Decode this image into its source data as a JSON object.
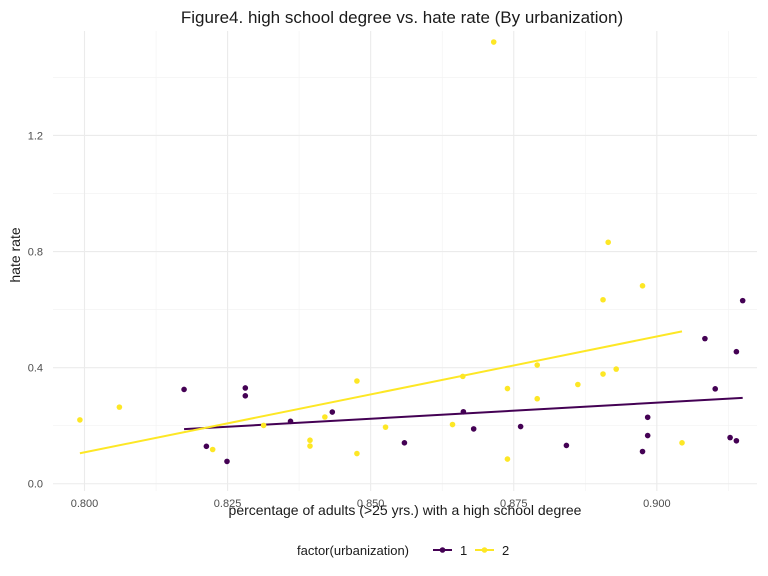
{
  "chart_data": {
    "type": "scatter",
    "title": "Figure4. high school degree vs. hate rate (By urbanization)",
    "xlabel": "percentage of adults (>25 yrs.) with a high school degree",
    "ylabel": "hate rate",
    "xlim": [
      0.7945,
      0.9175
    ],
    "ylim": [
      -0.025,
      1.56
    ],
    "x_ticks": [
      0.8,
      0.825,
      0.85,
      0.875,
      0.9
    ],
    "x_tick_labels": [
      "0.800",
      "0.825",
      "0.850",
      "0.875",
      "0.900"
    ],
    "y_ticks": [
      0.0,
      0.4,
      0.8,
      1.2
    ],
    "y_tick_labels": [
      "0.0",
      "0.4",
      "0.8",
      "1.2"
    ],
    "grid": true,
    "legend": {
      "title": "factor(urbanization)",
      "position": "bottom",
      "entries": [
        "1",
        "2"
      ]
    },
    "series": [
      {
        "name": "1",
        "color": "#440154",
        "points": [
          [
            0.8174,
            0.325
          ],
          [
            0.8213,
            0.129
          ],
          [
            0.8249,
            0.077
          ],
          [
            0.8281,
            0.33
          ],
          [
            0.8281,
            0.303
          ],
          [
            0.836,
            0.215
          ],
          [
            0.8433,
            0.247
          ],
          [
            0.8559,
            0.141
          ],
          [
            0.8662,
            0.248
          ],
          [
            0.868,
            0.189
          ],
          [
            0.8762,
            0.197
          ],
          [
            0.8842,
            0.132
          ],
          [
            0.8975,
            0.111
          ],
          [
            0.8984,
            0.229
          ],
          [
            0.8984,
            0.166
          ],
          [
            0.9084,
            0.5
          ],
          [
            0.9102,
            0.327
          ],
          [
            0.9128,
            0.159
          ],
          [
            0.9139,
            0.148
          ],
          [
            0.9139,
            0.455
          ],
          [
            0.915,
            0.631
          ]
        ],
        "trend": [
          [
            0.8174,
            0.188
          ],
          [
            0.915,
            0.296
          ]
        ]
      },
      {
        "name": "2",
        "color": "#fde725",
        "points": [
          [
            0.7992,
            0.22
          ],
          [
            0.8061,
            0.264
          ],
          [
            0.8224,
            0.118
          ],
          [
            0.8313,
            0.201
          ],
          [
            0.8394,
            0.15
          ],
          [
            0.8394,
            0.13
          ],
          [
            0.842,
            0.23
          ],
          [
            0.8476,
            0.354
          ],
          [
            0.8476,
            0.104
          ],
          [
            0.8526,
            0.195
          ],
          [
            0.8643,
            0.204
          ],
          [
            0.8661,
            0.37
          ],
          [
            0.8715,
            1.522
          ],
          [
            0.8739,
            0.328
          ],
          [
            0.8739,
            0.085
          ],
          [
            0.8791,
            0.409
          ],
          [
            0.8791,
            0.293
          ],
          [
            0.8862,
            0.342
          ],
          [
            0.8906,
            0.634
          ],
          [
            0.8906,
            0.378
          ],
          [
            0.8915,
            0.832
          ],
          [
            0.8929,
            0.395
          ],
          [
            0.8975,
            0.682
          ],
          [
            0.9044,
            0.141
          ]
        ],
        "trend": [
          [
            0.7992,
            0.105
          ],
          [
            0.9044,
            0.525
          ]
        ]
      }
    ]
  }
}
